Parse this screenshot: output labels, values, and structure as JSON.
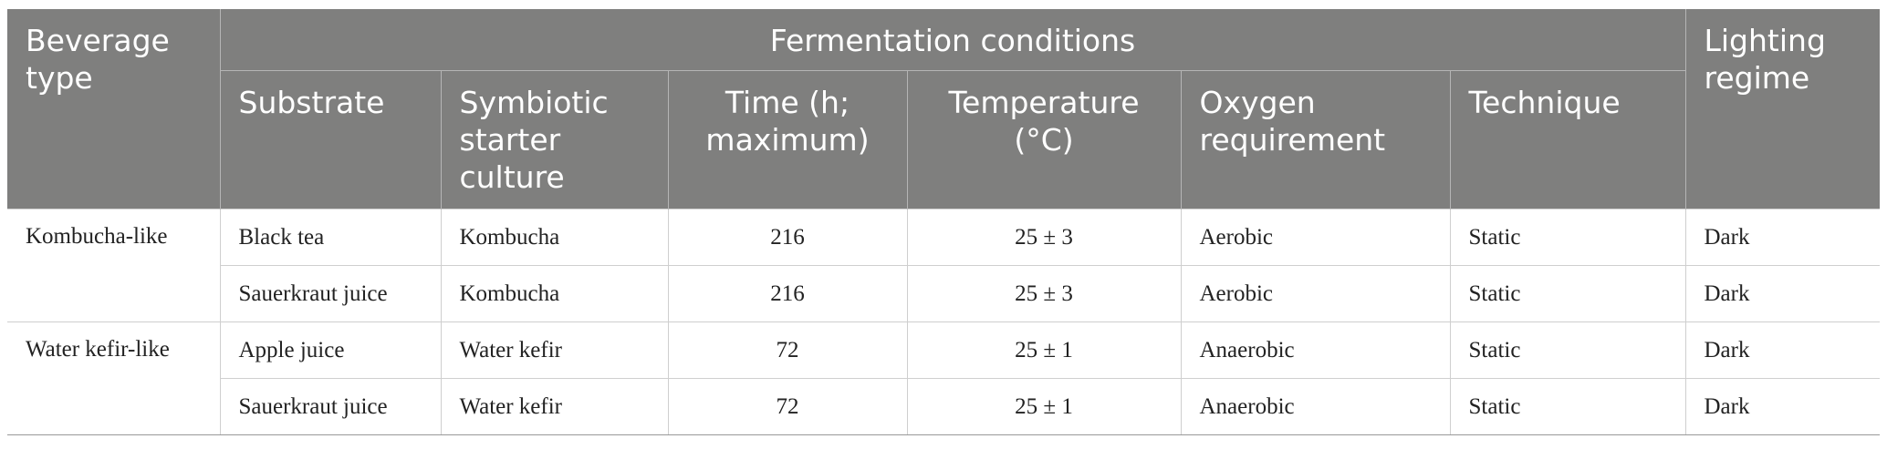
{
  "table": {
    "header_top": [
      "Beverage type",
      "Fermentation conditions",
      "Lighting regime"
    ],
    "header_sub": [
      "Substrate",
      "Symbiotic starter culture",
      "Time (h; maximum)",
      "Temperature (°C)",
      "Oxygen requirement",
      "Technique"
    ],
    "groups": [
      {
        "beverage": "Kombucha-like",
        "rows": [
          [
            "Black tea",
            "Kombucha",
            "216",
            "25 ± 3",
            "Aerobic",
            "Static",
            "Dark"
          ],
          [
            "Sauerkraut juice",
            "Kombucha",
            "216",
            "25 ± 3",
            "Aerobic",
            "Static",
            "Dark"
          ]
        ]
      },
      {
        "beverage": "Water kefir-like",
        "rows": [
          [
            "Apple juice",
            "Water kefir",
            "72",
            "25 ± 1",
            "Anaerobic",
            "Static",
            "Dark"
          ],
          [
            "Sauerkraut juice",
            "Water kefir",
            "72",
            "25 ± 1",
            "Anaerobic",
            "Static",
            "Dark"
          ]
        ]
      }
    ]
  }
}
